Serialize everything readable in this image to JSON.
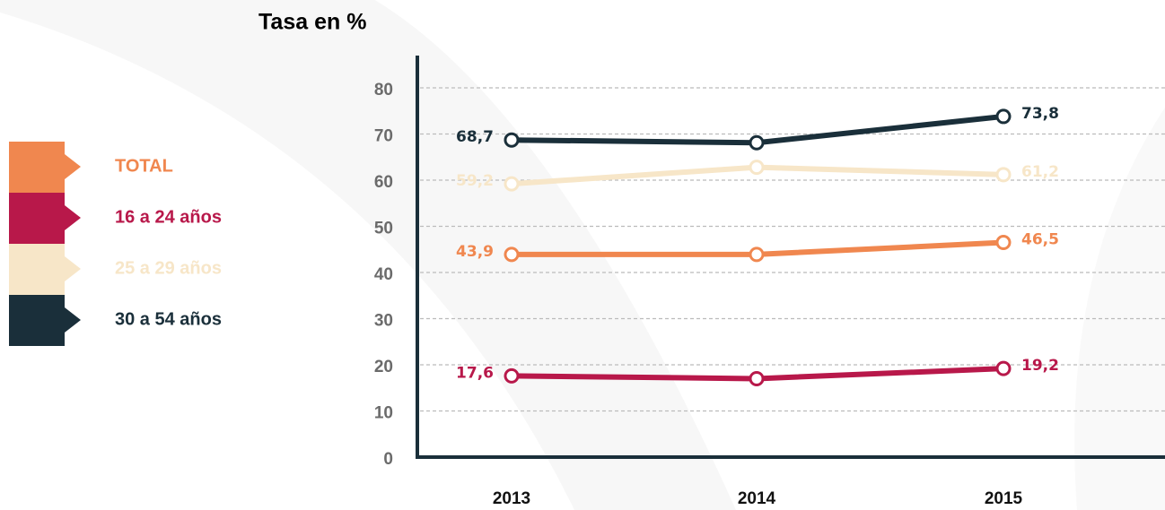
{
  "chart_data": {
    "type": "line",
    "title": "Tasa en %",
    "categories": [
      "2013",
      "2014",
      "2015"
    ],
    "ylim": [
      0,
      80
    ],
    "yticks": [
      0,
      10,
      20,
      30,
      40,
      50,
      60,
      70,
      80
    ],
    "grid": true,
    "series": [
      {
        "name": "TOTAL",
        "color": "#f0874f",
        "values": [
          43.9,
          43.9,
          46.5
        ],
        "value_labels": [
          "43,9",
          null,
          "46,5"
        ]
      },
      {
        "name": "16 a 24 años",
        "color": "#b8184a",
        "values": [
          17.6,
          17.0,
          19.2
        ],
        "value_labels": [
          "17,6",
          null,
          "19,2"
        ]
      },
      {
        "name": "25 a 29 años",
        "color": "#f7e6c8",
        "values": [
          59.2,
          62.8,
          61.2
        ],
        "value_labels": [
          "59,2",
          null,
          "61,2"
        ]
      },
      {
        "name": "30 a 54 años",
        "color": "#1a2f3a",
        "values": [
          68.7,
          68.1,
          73.8
        ],
        "value_labels": [
          "68,7",
          null,
          "73,8"
        ]
      }
    ]
  }
}
